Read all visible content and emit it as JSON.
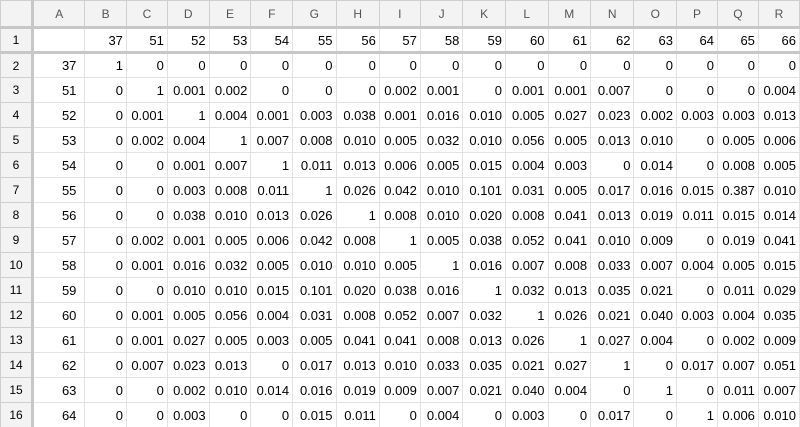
{
  "column_headers": [
    "A",
    "B",
    "C",
    "D",
    "E",
    "F",
    "G",
    "H",
    "I",
    "J",
    "K",
    "L",
    "M",
    "N",
    "O",
    "P",
    "Q",
    "R"
  ],
  "rows": [
    {
      "num": "1",
      "cells": [
        "",
        "37",
        "51",
        "52",
        "53",
        "54",
        "55",
        "56",
        "57",
        "58",
        "59",
        "60",
        "61",
        "62",
        "63",
        "64",
        "65",
        "66"
      ]
    },
    {
      "num": "2",
      "cells": [
        "37",
        "1",
        "0",
        "0",
        "0",
        "0",
        "0",
        "0",
        "0",
        "0",
        "0",
        "0",
        "0",
        "0",
        "0",
        "0",
        "0",
        "0"
      ]
    },
    {
      "num": "3",
      "cells": [
        "51",
        "0",
        "1",
        "0.001",
        "0.002",
        "0",
        "0",
        "0",
        "0.002",
        "0.001",
        "0",
        "0.001",
        "0.001",
        "0.007",
        "0",
        "0",
        "0",
        "0.004"
      ]
    },
    {
      "num": "4",
      "cells": [
        "52",
        "0",
        "0.001",
        "1",
        "0.004",
        "0.001",
        "0.003",
        "0.038",
        "0.001",
        "0.016",
        "0.010",
        "0.005",
        "0.027",
        "0.023",
        "0.002",
        "0.003",
        "0.003",
        "0.013"
      ]
    },
    {
      "num": "5",
      "cells": [
        "53",
        "0",
        "0.002",
        "0.004",
        "1",
        "0.007",
        "0.008",
        "0.010",
        "0.005",
        "0.032",
        "0.010",
        "0.056",
        "0.005",
        "0.013",
        "0.010",
        "0",
        "0.005",
        "0.006"
      ]
    },
    {
      "num": "6",
      "cells": [
        "54",
        "0",
        "0",
        "0.001",
        "0.007",
        "1",
        "0.011",
        "0.013",
        "0.006",
        "0.005",
        "0.015",
        "0.004",
        "0.003",
        "0",
        "0.014",
        "0",
        "0.008",
        "0.005"
      ]
    },
    {
      "num": "7",
      "cells": [
        "55",
        "0",
        "0",
        "0.003",
        "0.008",
        "0.011",
        "1",
        "0.026",
        "0.042",
        "0.010",
        "0.101",
        "0.031",
        "0.005",
        "0.017",
        "0.016",
        "0.015",
        "0.387",
        "0.010"
      ]
    },
    {
      "num": "8",
      "cells": [
        "56",
        "0",
        "0",
        "0.038",
        "0.010",
        "0.013",
        "0.026",
        "1",
        "0.008",
        "0.010",
        "0.020",
        "0.008",
        "0.041",
        "0.013",
        "0.019",
        "0.011",
        "0.015",
        "0.014"
      ]
    },
    {
      "num": "9",
      "cells": [
        "57",
        "0",
        "0.002",
        "0.001",
        "0.005",
        "0.006",
        "0.042",
        "0.008",
        "1",
        "0.005",
        "0.038",
        "0.052",
        "0.041",
        "0.010",
        "0.009",
        "0",
        "0.019",
        "0.041"
      ]
    },
    {
      "num": "10",
      "cells": [
        "58",
        "0",
        "0.001",
        "0.016",
        "0.032",
        "0.005",
        "0.010",
        "0.010",
        "0.005",
        "1",
        "0.016",
        "0.007",
        "0.008",
        "0.033",
        "0.007",
        "0.004",
        "0.005",
        "0.015"
      ]
    },
    {
      "num": "11",
      "cells": [
        "59",
        "0",
        "0",
        "0.010",
        "0.010",
        "0.015",
        "0.101",
        "0.020",
        "0.038",
        "0.016",
        "1",
        "0.032",
        "0.013",
        "0.035",
        "0.021",
        "0",
        "0.011",
        "0.029"
      ]
    },
    {
      "num": "12",
      "cells": [
        "60",
        "0",
        "0.001",
        "0.005",
        "0.056",
        "0.004",
        "0.031",
        "0.008",
        "0.052",
        "0.007",
        "0.032",
        "1",
        "0.026",
        "0.021",
        "0.040",
        "0.003",
        "0.004",
        "0.035"
      ]
    },
    {
      "num": "13",
      "cells": [
        "61",
        "0",
        "0.001",
        "0.027",
        "0.005",
        "0.003",
        "0.005",
        "0.041",
        "0.041",
        "0.008",
        "0.013",
        "0.026",
        "1",
        "0.027",
        "0.004",
        "0",
        "0.002",
        "0.009"
      ]
    },
    {
      "num": "14",
      "cells": [
        "62",
        "0",
        "0.007",
        "0.023",
        "0.013",
        "0",
        "0.017",
        "0.013",
        "0.010",
        "0.033",
        "0.035",
        "0.021",
        "0.027",
        "1",
        "0",
        "0.017",
        "0.007",
        "0.051"
      ]
    },
    {
      "num": "15",
      "cells": [
        "63",
        "0",
        "0",
        "0.002",
        "0.010",
        "0.014",
        "0.016",
        "0.019",
        "0.009",
        "0.007",
        "0.021",
        "0.040",
        "0.004",
        "0",
        "1",
        "0",
        "0.011",
        "0.007"
      ]
    },
    {
      "num": "16",
      "cells": [
        "64",
        "0",
        "0",
        "0.003",
        "0",
        "0",
        "0.015",
        "0.011",
        "0",
        "0.004",
        "0",
        "0.003",
        "0",
        "0.017",
        "0",
        "1",
        "0.006",
        "0.010"
      ]
    }
  ]
}
